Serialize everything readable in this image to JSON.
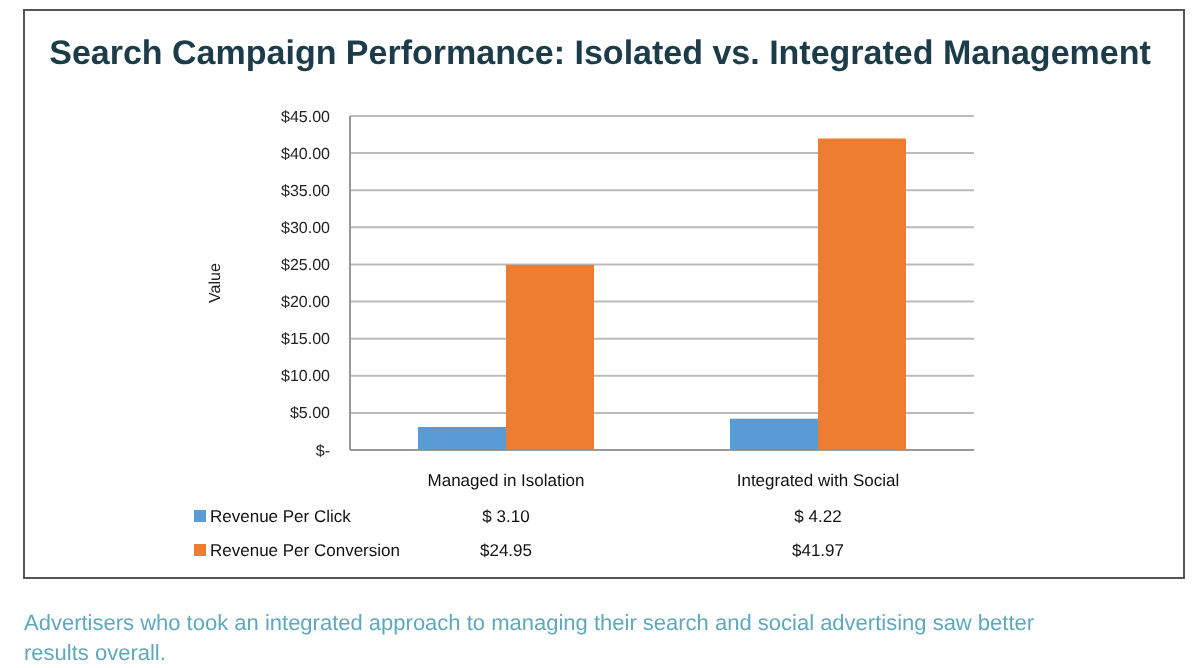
{
  "chart_data": {
    "type": "bar",
    "title": "Search Campaign Performance: Isolated vs. Integrated Management",
    "ylabel": "Value",
    "categories": [
      "Managed in Isolation",
      "Integrated with Social"
    ],
    "series": [
      {
        "name": "Revenue Per Click",
        "color": "#5b9bd5",
        "values": [
          3.1,
          4.22
        ],
        "value_labels": [
          "$ 3.10",
          "$ 4.22"
        ]
      },
      {
        "name": "Revenue Per Conversion",
        "color": "#ed7d31",
        "values": [
          24.95,
          41.97
        ],
        "value_labels": [
          "$24.95",
          "$41.97"
        ]
      }
    ],
    "ylim": [
      0,
      45
    ],
    "yticks": [
      {
        "value": 0,
        "label": "$-"
      },
      {
        "value": 5,
        "label": "$5.00"
      },
      {
        "value": 10,
        "label": "$10.00"
      },
      {
        "value": 15,
        "label": "$15.00"
      },
      {
        "value": 20,
        "label": "$20.00"
      },
      {
        "value": 25,
        "label": "$25.00"
      },
      {
        "value": 30,
        "label": "$30.00"
      },
      {
        "value": 35,
        "label": "$35.00"
      },
      {
        "value": 40,
        "label": "$40.00"
      },
      {
        "value": 45,
        "label": "$45.00"
      }
    ],
    "grid": "y",
    "legend": "bottom",
    "annotations": [
      "Advertisers who took an integrated approach to managing their search and social advertising saw better results overall."
    ]
  }
}
